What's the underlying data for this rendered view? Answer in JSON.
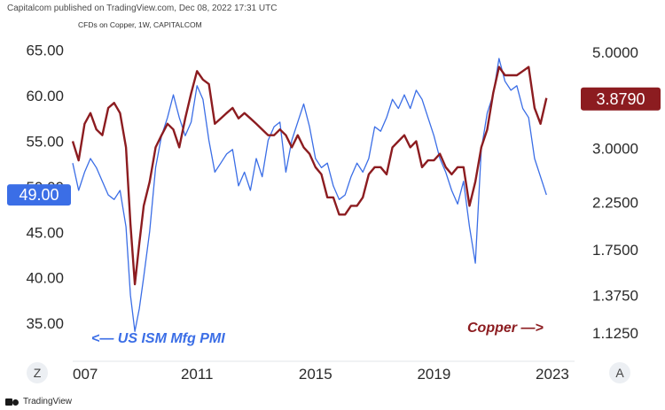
{
  "header": {
    "published": "Capitalcom published on TradingView.com, Dec 08, 2022 17:31 UTC",
    "subtitle": "CFDs on Copper, 1W, CAPITALCOM"
  },
  "footer": {
    "brand": "TradingView"
  },
  "buttons": {
    "left_scale": "Z",
    "right_scale": "A"
  },
  "colors": {
    "pmi": "#3b6ee6",
    "copper": "#8c1c20",
    "background": "#ffffff"
  },
  "chart_data": {
    "type": "line",
    "x_tick_labels": [
      "007",
      "2011",
      "2015",
      "2019",
      "2023"
    ],
    "left_axis": {
      "series": "US ISM Mfg PMI",
      "ticks": [
        "35.00",
        "40.00",
        "45.00",
        "50.00",
        "55.00",
        "60.00",
        "65.00"
      ],
      "range": [
        31.5,
        67.5
      ],
      "last_value_badge": "49.00"
    },
    "right_axis": {
      "series": "Copper",
      "scale": "log",
      "ticks": [
        "1.1250",
        "1.3750",
        "1.7500",
        "2.2500",
        "3.0000",
        "5.0000"
      ],
      "range": [
        1.0,
        5.7
      ],
      "last_value_badge": "3.8790"
    },
    "annotations": {
      "pmi_label": "<— US ISM Mfg PMI",
      "copper_label": "Copper —>"
    },
    "series": [
      {
        "name": "US ISM Mfg PMI",
        "axis": "left",
        "x": [
          2006.9,
          2007.1,
          2007.3,
          2007.5,
          2007.7,
          2007.9,
          2008.1,
          2008.3,
          2008.5,
          2008.7,
          2008.85,
          2009.0,
          2009.15,
          2009.3,
          2009.5,
          2009.7,
          2009.9,
          2010.1,
          2010.3,
          2010.5,
          2010.7,
          2010.9,
          2011.1,
          2011.3,
          2011.5,
          2011.7,
          2011.9,
          2012.1,
          2012.3,
          2012.5,
          2012.7,
          2012.9,
          2013.1,
          2013.3,
          2013.5,
          2013.7,
          2013.9,
          2014.1,
          2014.3,
          2014.5,
          2014.7,
          2014.9,
          2015.1,
          2015.3,
          2015.5,
          2015.7,
          2015.9,
          2016.1,
          2016.3,
          2016.5,
          2016.7,
          2016.9,
          2017.1,
          2017.3,
          2017.5,
          2017.7,
          2017.9,
          2018.1,
          2018.3,
          2018.5,
          2018.7,
          2018.9,
          2019.1,
          2019.3,
          2019.5,
          2019.7,
          2019.9,
          2020.1,
          2020.3,
          2020.5,
          2020.7,
          2020.9,
          2021.1,
          2021.3,
          2021.5,
          2021.7,
          2021.9,
          2022.1,
          2022.3,
          2022.5,
          2022.7,
          2022.9
        ],
        "values": [
          52.5,
          49.5,
          51.5,
          53.0,
          52.0,
          50.5,
          49.0,
          48.5,
          49.5,
          45.5,
          38.0,
          34.0,
          36.5,
          40.0,
          45.0,
          52.0,
          55.5,
          57.5,
          60.0,
          57.5,
          55.5,
          57.0,
          61.0,
          59.5,
          55.0,
          51.5,
          52.5,
          53.5,
          54.0,
          50.0,
          51.5,
          49.5,
          53.0,
          51.0,
          55.0,
          56.5,
          57.0,
          51.5,
          55.0,
          57.0,
          59.0,
          56.5,
          53.0,
          52.0,
          52.5,
          50.0,
          48.5,
          49.0,
          51.0,
          52.5,
          51.5,
          53.0,
          56.5,
          56.0,
          57.5,
          59.5,
          58.5,
          60.0,
          58.5,
          60.5,
          59.5,
          57.5,
          55.5,
          53.0,
          51.5,
          49.5,
          48.0,
          50.5,
          45.5,
          41.5,
          54.0,
          58.0,
          60.0,
          64.0,
          61.5,
          60.5,
          61.0,
          58.5,
          57.5,
          53.0,
          51.0,
          49.0
        ]
      },
      {
        "name": "Copper",
        "axis": "right",
        "x": [
          2006.9,
          2007.1,
          2007.3,
          2007.5,
          2007.7,
          2007.9,
          2008.1,
          2008.3,
          2008.5,
          2008.7,
          2008.85,
          2009.0,
          2009.15,
          2009.3,
          2009.5,
          2009.7,
          2009.9,
          2010.1,
          2010.3,
          2010.5,
          2010.7,
          2010.9,
          2011.1,
          2011.3,
          2011.5,
          2011.7,
          2011.9,
          2012.1,
          2012.3,
          2012.5,
          2012.7,
          2012.9,
          2013.1,
          2013.3,
          2013.5,
          2013.7,
          2013.9,
          2014.1,
          2014.3,
          2014.5,
          2014.7,
          2014.9,
          2015.1,
          2015.3,
          2015.5,
          2015.7,
          2015.9,
          2016.1,
          2016.3,
          2016.5,
          2016.7,
          2016.9,
          2017.1,
          2017.3,
          2017.5,
          2017.7,
          2017.9,
          2018.1,
          2018.3,
          2018.5,
          2018.7,
          2018.9,
          2019.1,
          2019.3,
          2019.5,
          2019.7,
          2019.9,
          2020.1,
          2020.3,
          2020.5,
          2020.7,
          2020.9,
          2021.1,
          2021.3,
          2021.5,
          2021.7,
          2021.9,
          2022.1,
          2022.3,
          2022.5,
          2022.7,
          2022.9
        ],
        "values": [
          3.1,
          2.8,
          3.4,
          3.6,
          3.3,
          3.2,
          3.7,
          3.8,
          3.6,
          3.0,
          2.0,
          1.45,
          1.8,
          2.2,
          2.5,
          3.0,
          3.2,
          3.4,
          3.3,
          3.0,
          3.5,
          4.0,
          4.5,
          4.3,
          4.2,
          3.4,
          3.5,
          3.6,
          3.7,
          3.5,
          3.6,
          3.5,
          3.4,
          3.3,
          3.2,
          3.2,
          3.3,
          3.2,
          3.0,
          3.2,
          3.0,
          2.9,
          2.7,
          2.6,
          2.3,
          2.3,
          2.1,
          2.1,
          2.2,
          2.2,
          2.3,
          2.6,
          2.7,
          2.7,
          2.6,
          3.0,
          3.1,
          3.2,
          3.0,
          3.1,
          2.7,
          2.8,
          2.8,
          2.9,
          2.7,
          2.6,
          2.7,
          2.7,
          2.2,
          2.5,
          3.0,
          3.3,
          4.0,
          4.6,
          4.4,
          4.4,
          4.4,
          4.5,
          4.6,
          3.7,
          3.4,
          3.9
        ]
      }
    ]
  }
}
